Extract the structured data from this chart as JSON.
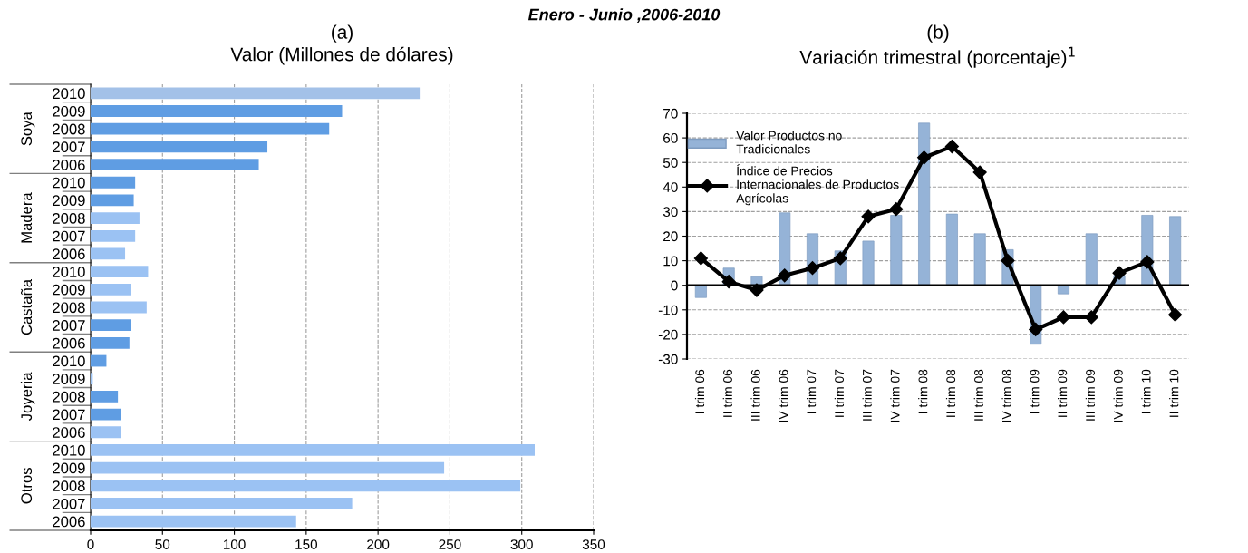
{
  "chart_data": [
    {
      "type": "bar",
      "orientation": "horizontal",
      "title": "(a)",
      "subtitle": "Valor (Millones de dólares)",
      "categories": [
        "2010",
        "2009",
        "2008",
        "2007",
        "2006",
        "2010",
        "2009",
        "2008",
        "2007",
        "2006",
        "2010",
        "2009",
        "2008",
        "2007",
        "2006",
        "2010",
        "2009",
        "2008",
        "2007",
        "2006",
        "2010",
        "2009",
        "2008",
        "2007",
        "2006"
      ],
      "values": [
        229,
        175,
        166,
        123,
        117,
        31,
        30,
        34,
        31,
        24,
        40,
        28,
        39,
        28,
        27,
        11,
        1.5,
        19,
        21,
        21,
        309,
        246,
        299,
        182,
        143
      ],
      "colors": [
        "#a3c1e8",
        "#5f9de3",
        "#5f9de3",
        "#5f9de3",
        "#5f9de3",
        "#5f9de3",
        "#5f9de3",
        "#9bc2f3",
        "#9bc2f3",
        "#9bc2f3",
        "#9bc2f3",
        "#9bc2f3",
        "#9bc2f3",
        "#5f9de3",
        "#5f9de3",
        "#5f9de3",
        "#9bc2f3",
        "#5f9de3",
        "#5f9de3",
        "#9bc2f3",
        "#9bc2f3",
        "#9bc2f3",
        "#9bc2f3",
        "#9bc2f3",
        "#9bc2f3"
      ],
      "annotations": [
        "Soya",
        "Madera",
        "Castaña",
        "Joyeria",
        "Otros"
      ],
      "xlim": [
        0,
        350
      ],
      "xticks": [
        0,
        50,
        100,
        150,
        200,
        250,
        300,
        350
      ],
      "grid": "x"
    },
    {
      "type": "bar",
      "title": "(b)",
      "subtitle": "Variación trimestral (porcentaje)$^{1}$",
      "categories": [
        "I trim 06",
        "II trim 06",
        "III trim 06",
        "IV trim 06",
        "I trim 07",
        "II trim 07",
        "III trim 07",
        "IV trim 07",
        "I trim 08",
        "II trim 08",
        "III trim 08",
        "IV trim 08",
        "I trim 09",
        "II trim 09",
        "III trim 09",
        "IV trim 09",
        "I trim 10",
        "II trim 10"
      ],
      "series": [
        {
          "name": "Valor Productos no Tradicionales",
          "type": "bar",
          "color": "#95b3d7",
          "values": [
            -5,
            7,
            3.5,
            29.5,
            21,
            14,
            18,
            28.5,
            66,
            29,
            21,
            14.5,
            -24,
            -3.5,
            21,
            4,
            28.5,
            28
          ]
        },
        {
          "name": "Índice de Precios Internacionales de Productos Agrícolas",
          "type": "line",
          "color": "#000000",
          "marker": "diamond",
          "values": [
            11,
            1.5,
            -2,
            4,
            7,
            11,
            28,
            31,
            52,
            56.5,
            46,
            10,
            -18,
            -13,
            -13,
            5,
            9.5,
            -12
          ]
        }
      ],
      "ylim": [
        -30,
        70
      ],
      "yticks": [
        -30,
        -20,
        -10,
        0,
        10,
        20,
        30,
        40,
        50,
        60,
        70
      ],
      "grid": "y",
      "legend": "top left",
      "annotations": [
        "Enero - Junio ,2006-2010"
      ]
    }
  ]
}
